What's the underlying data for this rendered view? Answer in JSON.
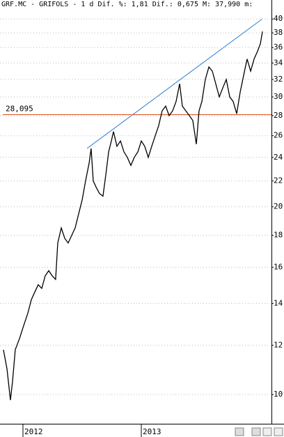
{
  "chart_data": {
    "type": "line",
    "title": "GRF.MC - GRIFOLS - 1 d Dif. %: 1,81 Dif.: 0,675 M: 37,990 m:",
    "x": [
      2011.835,
      2011.865,
      2011.894,
      2011.912,
      2011.935,
      2011.971,
      2012.0,
      2012.041,
      2012.071,
      2012.1,
      2012.129,
      2012.159,
      2012.188,
      2012.218,
      2012.247,
      2012.276,
      2012.294,
      2012.324,
      2012.353,
      2012.382,
      2012.412,
      2012.441,
      2012.471,
      2012.5,
      2012.529,
      2012.559,
      2012.576,
      2012.594,
      2012.618,
      2012.647,
      2012.676,
      2012.7,
      2012.724,
      2012.747,
      2012.765,
      2012.794,
      2012.824,
      2012.853,
      2012.882,
      2012.912,
      2012.941,
      2012.971,
      2013.0,
      2013.029,
      2013.059,
      2013.088,
      2013.118,
      2013.147,
      2013.176,
      2013.206,
      2013.235,
      2013.265,
      2013.294,
      2013.324,
      2013.347,
      2013.376,
      2013.406,
      2013.435,
      2013.465,
      2013.488,
      2013.512,
      2013.541,
      2013.571,
      2013.6,
      2013.629,
      2013.659,
      2013.688,
      2013.718,
      2013.747,
      2013.776,
      2013.806,
      2013.835,
      2013.865,
      2013.894,
      2013.924,
      2013.953,
      2013.982,
      2014.006,
      2014.024
    ],
    "series": [
      {
        "color": "#000000",
        "values": [
          11.8,
          11,
          9.8,
          10.5,
          11.8,
          12.3,
          12.8,
          13.5,
          14.2,
          14.6,
          15,
          14.8,
          15.5,
          15.8,
          15.5,
          15.3,
          17.5,
          18.5,
          17.8,
          17.5,
          18,
          18.5,
          19.5,
          20.5,
          22,
          23.5,
          24.8,
          22,
          21.5,
          21,
          20.8,
          22.5,
          24.5,
          25.5,
          26.4,
          25,
          25.5,
          24.5,
          24,
          23.3,
          24,
          24.5,
          25.5,
          25,
          24,
          25,
          26,
          27,
          28.5,
          29,
          28,
          28.5,
          29.5,
          31.5,
          29,
          28.5,
          28,
          27.5,
          25.2,
          28.5,
          29.5,
          32,
          33.5,
          33,
          31.5,
          30,
          31,
          32,
          30,
          29.5,
          28.2,
          30.5,
          32.5,
          34.5,
          33,
          34.5,
          35.5,
          36.5,
          38.2
        ]
      }
    ],
    "hline": {
      "value": 28.095,
      "label": "28,095",
      "color": "#e0501e"
    },
    "xlim": [
      2011.806,
      2014.1
    ],
    "xticks": [
      2012,
      2013
    ],
    "ylim": [
      8.98,
      42.9
    ],
    "yticks": [
      10,
      12,
      14,
      16,
      18,
      20,
      22,
      24,
      26,
      28,
      30,
      32,
      34,
      36,
      38,
      40
    ],
    "log_y": true,
    "grid": true
  }
}
